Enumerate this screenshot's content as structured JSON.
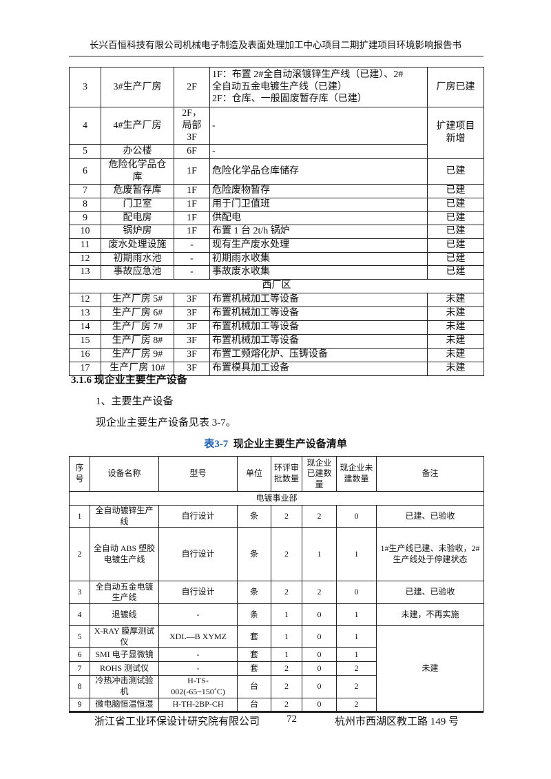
{
  "header": {
    "title": "长兴百恒科技有限公司机械电子制造及表面处理加工中心项目二期扩建项目环境影响报告书"
  },
  "table1": {
    "rows": [
      {
        "no": "3",
        "name": "3#生产厂房",
        "floor": "2F",
        "content": [
          "1F：布置 2#全自动滚镀锌生产线（已建）、2#",
          "全自动五金电镀生产线（已建）",
          "2F：仓库、一般固废暂存库（已建）"
        ],
        "remark": "厂房已建"
      },
      {
        "no": "4",
        "name": "4#生产厂房",
        "floor": [
          "2F，",
          "局部",
          "3F"
        ],
        "content": "-",
        "remark": [
          "扩建项目",
          "新增"
        ]
      },
      {
        "no": "5",
        "name": "办公楼",
        "floor": "6F",
        "content": "-"
      },
      {
        "no": "6",
        "name": [
          "危险化学品仓",
          "库"
        ],
        "floor": "1F",
        "content": "危险化学品仓库储存",
        "remark": "已建"
      },
      {
        "no": "7",
        "name": "危废暂存库",
        "floor": "1F",
        "content": "危险废物暂存",
        "remark": "已建"
      },
      {
        "no": "8",
        "name": "门卫室",
        "floor": "1F",
        "content": "用于门卫值班",
        "remark": "已建"
      },
      {
        "no": "9",
        "name": "配电房",
        "floor": "1F",
        "content": "供配电",
        "remark": "已建"
      },
      {
        "no": "10",
        "name": "锅炉房",
        "floor": "1F",
        "content": "布置 1 台 2t/h 锅炉",
        "remark": "已建"
      },
      {
        "no": "11",
        "name": "废水处理设施",
        "floor": "-",
        "content": "现有生产废水处理",
        "remark": "已建"
      },
      {
        "no": "12",
        "name": "初期雨水池",
        "floor": "-",
        "content": "初期雨水收集",
        "remark": "已建"
      },
      {
        "no": "13",
        "name": "事故应急池",
        "floor": "-",
        "content": "事故废水收集",
        "remark": "已建"
      }
    ],
    "section": "西厂区",
    "west_rows": [
      {
        "no": "12",
        "name": "生产厂房 5#",
        "floor": "3F",
        "content": "布置机械加工等设备",
        "remark": "未建"
      },
      {
        "no": "13",
        "name": "生产厂房 6#",
        "floor": "3F",
        "content": "布置机械加工等设备",
        "remark": "未建"
      },
      {
        "no": "14",
        "name": "生产厂房 7#",
        "floor": "3F",
        "content": "布置机械加工等设备",
        "remark": "未建"
      },
      {
        "no": "15",
        "name": "生产厂房 8#",
        "floor": "3F",
        "content": "布置机械加工等设备",
        "remark": "未建"
      },
      {
        "no": "16",
        "name": "生产厂房 9#",
        "floor": "3F",
        "content": "布置工频熔化炉、压铸设备",
        "remark": "未建"
      },
      {
        "no": "17",
        "name": "生产厂房 10#",
        "floor": "3F",
        "content": "布置模具加工设备",
        "remark": "未建"
      }
    ]
  },
  "section_heading": "3.1.6 现企业主要生产设备",
  "para1": "1、主要生产设备",
  "para2": "现企业主要生产设备见表 3-7。",
  "caption": {
    "label": "表3-7",
    "title": "现企业主要生产设备清单"
  },
  "table2": {
    "headers": [
      "序号",
      "设备名称",
      "型号",
      "单位",
      "环评审批数量",
      "现企业已建数量",
      "现企业未建数量",
      "备注"
    ],
    "section": "电镀事业部",
    "rows": [
      {
        "no": "1",
        "name": "全自动镀锌生产线",
        "model": "自行设计",
        "unit": "条",
        "approved": "2",
        "built": "2",
        "unbuilt": "0",
        "remark": "已建、已验收"
      },
      {
        "no": "2",
        "name": "全自动 ABS 塑胶电镀生产线",
        "model": "自行设计",
        "unit": "条",
        "approved": "2",
        "built": "1",
        "unbuilt": "1",
        "remark": "1#生产线已建、未验收，2#生产线处于停建状态"
      },
      {
        "no": "3",
        "name": "全自动五金电镀生产线",
        "model": "自行设计",
        "unit": "条",
        "approved": "2",
        "built": "2",
        "unbuilt": "0",
        "remark": "已建、已验收"
      },
      {
        "no": "4",
        "name": "退镀线",
        "model": "-",
        "unit": "条",
        "approved": "1",
        "built": "0",
        "unbuilt": "1",
        "remark": "未建，不再实施"
      },
      {
        "no": "5",
        "name": "X-RAY 膜厚测试仪",
        "model": "XDL—B  XYMZ",
        "unit": "套",
        "approved": "1",
        "built": "0",
        "unbuilt": "1",
        "remark": "未建"
      },
      {
        "no": "6",
        "name": "SMI 电子显微镜",
        "model": "-",
        "unit": "套",
        "approved": "1",
        "built": "0",
        "unbuilt": "1"
      },
      {
        "no": "7",
        "name": "ROHS 测试仪",
        "model": "-",
        "unit": "套",
        "approved": "2",
        "built": "0",
        "unbuilt": "2"
      },
      {
        "no": "8",
        "name": "冷热冲击测试验机",
        "model": "H-TS-002(-65~150˚C)",
        "unit": "台",
        "approved": "2",
        "built": "0",
        "unbuilt": "2"
      },
      {
        "no": "9",
        "name": "微电脑恒温恒湿",
        "model": "H-TH-2BP-CH",
        "unit": "台",
        "approved": "2",
        "built": "0",
        "unbuilt": "2"
      }
    ]
  },
  "footer": {
    "company": "浙江省工业环保设计研究院有限公司",
    "page": "72",
    "address": "杭州市西湖区教工路 149 号"
  },
  "colors": {
    "caption_label": "#1f5fb0"
  }
}
